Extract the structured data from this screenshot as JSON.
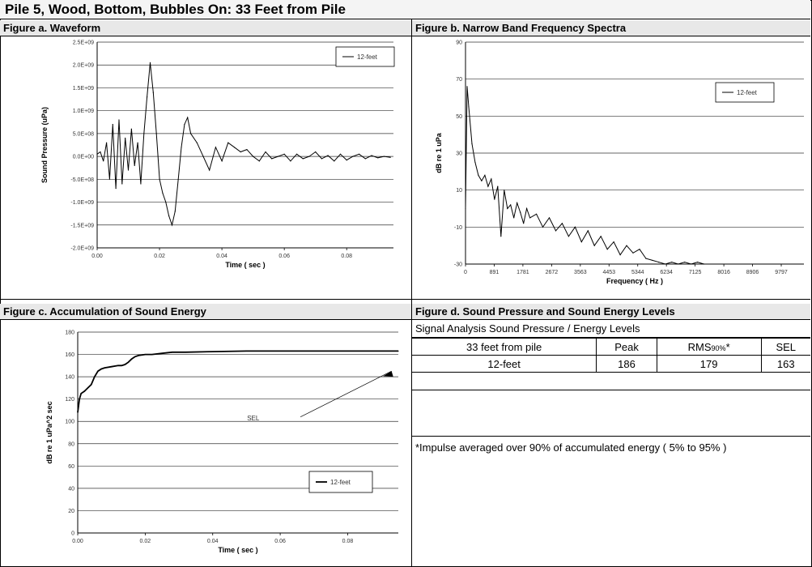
{
  "page_title": "Pile 5, Wood, Bottom, Bubbles On: 33 Feet from Pile",
  "panels": {
    "a": {
      "title": "Figure a. Waveform"
    },
    "b": {
      "title": "Figure b. Narrow Band Frequency Spectra"
    },
    "c": {
      "title": "Figure c. Accumulation of Sound Energy"
    },
    "d": {
      "title": "Figure d. Sound Pressure and Sound Energy Levels"
    }
  },
  "chart_data": [
    {
      "type": "line",
      "title": "Figure a. Waveform",
      "xlabel": "Time ( sec )",
      "ylabel": "Sound Pressure (uPa)",
      "xlim": [
        0,
        0.095
      ],
      "ylim": [
        -2000000000.0,
        2500000000.0
      ],
      "x_ticks": [
        "0.00",
        "0.02",
        "0.04",
        "0.06",
        "0.08"
      ],
      "x_tick_values": [
        0,
        0.02,
        0.04,
        0.06,
        0.08
      ],
      "y_ticks": [
        "-2.0E+09",
        "-1.5E+09",
        "-1.0E+09",
        "-5.0E+08",
        "0.0E+00",
        "5.0E+08",
        "1.0E+09",
        "1.5E+09",
        "2.0E+09",
        "2.5E+09"
      ],
      "y_tick_values": [
        -2000000000.0,
        -1500000000.0,
        -1000000000.0,
        -500000000.0,
        0,
        500000000.0,
        1000000000.0,
        1500000000.0,
        2000000000.0,
        2500000000.0
      ],
      "grid": "horizontal",
      "legend_position": "top-right",
      "series": [
        {
          "name": "12-feet",
          "x": [
            0.0,
            0.001,
            0.002,
            0.003,
            0.004,
            0.005,
            0.006,
            0.007,
            0.008,
            0.009,
            0.01,
            0.011,
            0.012,
            0.013,
            0.014,
            0.015,
            0.016,
            0.017,
            0.018,
            0.019,
            0.02,
            0.021,
            0.022,
            0.023,
            0.024,
            0.025,
            0.026,
            0.027,
            0.028,
            0.029,
            0.03,
            0.032,
            0.034,
            0.036,
            0.038,
            0.04,
            0.042,
            0.044,
            0.046,
            0.048,
            0.05,
            0.052,
            0.054,
            0.056,
            0.058,
            0.06,
            0.062,
            0.064,
            0.066,
            0.068,
            0.07,
            0.072,
            0.074,
            0.076,
            0.078,
            0.08,
            0.082,
            0.084,
            0.086,
            0.088,
            0.09,
            0.092,
            0.094
          ],
          "y": [
            50000000.0,
            100000000.0,
            -100000000.0,
            300000000.0,
            -500000000.0,
            700000000.0,
            -700000000.0,
            800000000.0,
            -600000000.0,
            400000000.0,
            -300000000.0,
            600000000.0,
            -200000000.0,
            300000000.0,
            -600000000.0,
            500000000.0,
            1300000000.0,
            2050000000.0,
            1400000000.0,
            500000000.0,
            -500000000.0,
            -800000000.0,
            -1000000000.0,
            -1300000000.0,
            -1500000000.0,
            -1200000000.0,
            -500000000.0,
            200000000.0,
            700000000.0,
            850000000.0,
            500000000.0,
            300000000.0,
            0.0,
            -300000000.0,
            200000000.0,
            -100000000.0,
            300000000.0,
            200000000.0,
            100000000.0,
            150000000.0,
            0.0,
            -100000000.0,
            100000000.0,
            -50000000.0,
            0.0,
            50000000.0,
            -100000000.0,
            50000000.0,
            -50000000.0,
            0.0,
            100000000.0,
            -50000000.0,
            20000000.0,
            -100000000.0,
            50000000.0,
            -80000000.0,
            0.0,
            50000000.0,
            -50000000.0,
            20000000.0,
            -30000000.0,
            0.0,
            -20000000.0
          ]
        }
      ]
    },
    {
      "type": "line",
      "title": "Figure b. Narrow Band Frequency Spectra",
      "xlabel": "Frequency ( Hz )",
      "ylabel": "dB re 1 uPa",
      "xlim": [
        0,
        10500
      ],
      "ylim": [
        -30,
        90
      ],
      "x_ticks": [
        "0",
        "891",
        "1781",
        "2672",
        "3563",
        "4453",
        "5344",
        "6234",
        "7125",
        "8016",
        "8906",
        "9797"
      ],
      "x_tick_values": [
        0,
        891,
        1781,
        2672,
        3563,
        4453,
        5344,
        6234,
        7125,
        8016,
        8906,
        9797
      ],
      "y_ticks": [
        "-30",
        "-10",
        "10",
        "30",
        "50",
        "70",
        "90"
      ],
      "y_tick_values": [
        -30,
        -10,
        10,
        30,
        50,
        70,
        90
      ],
      "grid": "horizontal",
      "legend_position": "top-right",
      "series": [
        {
          "name": "12-feet",
          "x": [
            0,
            50,
            100,
            200,
            300,
            400,
            500,
            600,
            700,
            800,
            900,
            1000,
            1100,
            1200,
            1300,
            1400,
            1500,
            1600,
            1700,
            1800,
            1900,
            2000,
            2200,
            2400,
            2600,
            2800,
            3000,
            3200,
            3400,
            3600,
            3800,
            4000,
            4200,
            4400,
            4600,
            4800,
            5000,
            5200,
            5400,
            5600,
            5800,
            6000,
            6200,
            6400,
            6600,
            6800,
            7000,
            7200,
            7400
          ],
          "y": [
            0,
            66,
            55,
            35,
            25,
            18,
            15,
            18,
            12,
            16,
            5,
            12,
            -15,
            10,
            0,
            2,
            -5,
            3,
            -2,
            -8,
            0,
            -5,
            -3,
            -10,
            -5,
            -12,
            -8,
            -15,
            -10,
            -18,
            -12,
            -20,
            -15,
            -22,
            -18,
            -25,
            -20,
            -24,
            -22,
            -27,
            -28,
            -29,
            -30,
            -29,
            -30,
            -29,
            -30,
            -29,
            -30
          ]
        }
      ]
    },
    {
      "type": "line",
      "title": "Figure c. Accumulation of Sound Energy",
      "xlabel": "Time ( sec )",
      "ylabel": "dB re 1 uPa^2 sec",
      "xlim": [
        0,
        0.095
      ],
      "ylim": [
        0,
        180
      ],
      "x_ticks": [
        "0.00",
        "0.02",
        "0.04",
        "0.06",
        "0.08"
      ],
      "x_tick_values": [
        0,
        0.02,
        0.04,
        0.06,
        0.08
      ],
      "y_ticks": [
        "0",
        "20",
        "40",
        "60",
        "80",
        "100",
        "120",
        "140",
        "160",
        "180"
      ],
      "y_tick_values": [
        0,
        20,
        40,
        60,
        80,
        100,
        120,
        140,
        160,
        180
      ],
      "grid": "horizontal",
      "legend_position": "bottom-right",
      "annotations": [
        {
          "text": "SEL"
        }
      ],
      "series": [
        {
          "name": "12-feet",
          "x": [
            0.0,
            0.0005,
            0.001,
            0.002,
            0.003,
            0.004,
            0.005,
            0.006,
            0.007,
            0.008,
            0.01,
            0.012,
            0.013,
            0.014,
            0.015,
            0.016,
            0.017,
            0.018,
            0.02,
            0.022,
            0.025,
            0.028,
            0.032,
            0.04,
            0.05,
            0.06,
            0.07,
            0.08,
            0.09,
            0.095
          ],
          "y": [
            108,
            120,
            125,
            127,
            130,
            133,
            140,
            145,
            147,
            148,
            149,
            150,
            150,
            151,
            153,
            156,
            158,
            159,
            160,
            160,
            161,
            162,
            162,
            162.5,
            163,
            163,
            163,
            163,
            163,
            163
          ]
        }
      ]
    }
  ],
  "levels_table": {
    "title": "Signal Analysis Sound Pressure / Energy Levels",
    "headers": {
      "distance": "33 feet from pile",
      "peak": "Peak",
      "rms_main": "RMS",
      "rms_sub": "90%",
      "rms_star": "*",
      "sel": "SEL"
    },
    "row": {
      "label": "12-feet",
      "peak": "186",
      "rms": "179",
      "sel": "163"
    },
    "footnote": "*Impulse averaged over 90% of accumulated energy ( 5% to 95% )"
  }
}
